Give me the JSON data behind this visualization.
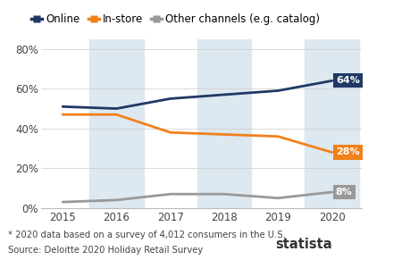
{
  "years": [
    2015,
    2016,
    2017,
    2018,
    2019,
    2020
  ],
  "online": [
    51,
    50,
    55,
    57,
    59,
    64
  ],
  "instore": [
    47,
    47,
    38,
    37,
    36,
    28
  ],
  "other": [
    3,
    4,
    7,
    7,
    5,
    8
  ],
  "online_color": "#1f3864",
  "instore_color": "#f0811a",
  "other_color": "#999999",
  "label_online": "Online",
  "label_instore": "In-store",
  "label_other": "Other channels (e.g. catalog)",
  "end_label_online": "64%",
  "end_label_instore": "28%",
  "end_label_other": "8%",
  "ylim": [
    0,
    85
  ],
  "yticks": [
    0,
    20,
    40,
    60,
    80
  ],
  "bg_color": "#ffffff",
  "band_color": "#dde8f0",
  "footnote1": "* 2020 data based on a survey of 4,012 consumers in the U.S.",
  "footnote2": "Source: Deloitte 2020 Holiday Retail Survey",
  "line_width": 2.0,
  "legend_fontsize": 8.5,
  "tick_fontsize": 8.5,
  "footnote_fontsize": 7.2,
  "statista_fontsize": 10.5,
  "icon_color": "#1f3864"
}
